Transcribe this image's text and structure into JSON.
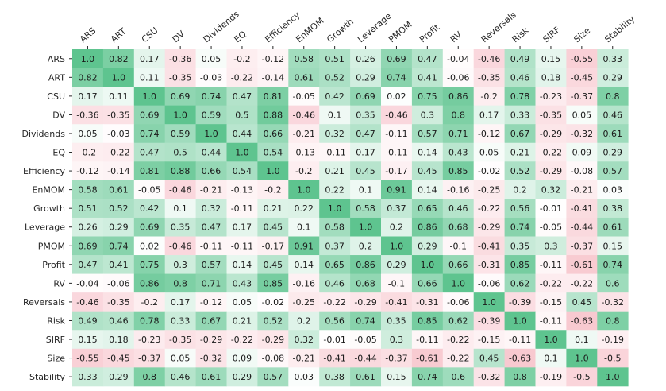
{
  "chart_data": {
    "type": "heatmap",
    "title": "",
    "xlabel": "",
    "ylabel": "",
    "categories": [
      "ARS",
      "ART",
      "CSU",
      "DV",
      "Dividends",
      "EQ",
      "Efficiency",
      "EnMOM",
      "Growth",
      "Leverage",
      "PMOM",
      "Profit",
      "RV",
      "Reversals",
      "Risk",
      "SIRF",
      "Size",
      "Stability"
    ],
    "value_range": [
      -1,
      1
    ],
    "colormap": {
      "negative": "#f4a9b4",
      "zero": "#ffffff",
      "positive": "#5ec48f"
    },
    "matrix": [
      [
        1.0,
        0.82,
        0.17,
        -0.36,
        0.05,
        -0.2,
        -0.12,
        0.58,
        0.51,
        0.26,
        0.69,
        0.47,
        -0.04,
        -0.46,
        0.49,
        0.15,
        -0.55,
        0.33
      ],
      [
        0.82,
        1.0,
        0.11,
        -0.35,
        -0.03,
        -0.22,
        -0.14,
        0.61,
        0.52,
        0.29,
        0.74,
        0.41,
        -0.06,
        -0.35,
        0.46,
        0.18,
        -0.45,
        0.29
      ],
      [
        0.17,
        0.11,
        1.0,
        0.69,
        0.74,
        0.47,
        0.81,
        -0.05,
        0.42,
        0.69,
        0.02,
        0.75,
        0.86,
        -0.2,
        0.78,
        -0.23,
        -0.37,
        0.8
      ],
      [
        -0.36,
        -0.35,
        0.69,
        1.0,
        0.59,
        0.5,
        0.88,
        -0.46,
        0.1,
        0.35,
        -0.46,
        0.3,
        0.8,
        0.17,
        0.33,
        -0.35,
        0.05,
        0.46
      ],
      [
        0.05,
        -0.03,
        0.74,
        0.59,
        1.0,
        0.44,
        0.66,
        -0.21,
        0.32,
        0.47,
        -0.11,
        0.57,
        0.71,
        -0.12,
        0.67,
        -0.29,
        -0.32,
        0.61
      ],
      [
        -0.2,
        -0.22,
        0.47,
        0.5,
        0.44,
        1.0,
        0.54,
        -0.13,
        -0.11,
        0.17,
        -0.11,
        0.14,
        0.43,
        0.05,
        0.21,
        -0.22,
        0.09,
        0.29
      ],
      [
        -0.12,
        -0.14,
        0.81,
        0.88,
        0.66,
        0.54,
        1.0,
        -0.2,
        0.21,
        0.45,
        -0.17,
        0.45,
        0.85,
        -0.02,
        0.52,
        -0.29,
        -0.08,
        0.57
      ],
      [
        0.58,
        0.61,
        -0.05,
        -0.46,
        -0.21,
        -0.13,
        -0.2,
        1.0,
        0.22,
        0.1,
        0.91,
        0.14,
        -0.16,
        -0.25,
        0.2,
        0.32,
        -0.21,
        0.03
      ],
      [
        0.51,
        0.52,
        0.42,
        0.1,
        0.32,
        -0.11,
        0.21,
        0.22,
        1.0,
        0.58,
        0.37,
        0.65,
        0.46,
        -0.22,
        0.56,
        -0.01,
        -0.41,
        0.38
      ],
      [
        0.26,
        0.29,
        0.69,
        0.35,
        0.47,
        0.17,
        0.45,
        0.1,
        0.58,
        1.0,
        0.2,
        0.86,
        0.68,
        -0.29,
        0.74,
        -0.05,
        -0.44,
        0.61
      ],
      [
        0.69,
        0.74,
        0.02,
        -0.46,
        -0.11,
        -0.11,
        -0.17,
        0.91,
        0.37,
        0.2,
        1.0,
        0.29,
        -0.1,
        -0.41,
        0.35,
        0.3,
        -0.37,
        0.15
      ],
      [
        0.47,
        0.41,
        0.75,
        0.3,
        0.57,
        0.14,
        0.45,
        0.14,
        0.65,
        0.86,
        0.29,
        1.0,
        0.66,
        -0.31,
        0.85,
        -0.11,
        -0.61,
        0.74
      ],
      [
        -0.04,
        -0.06,
        0.86,
        0.8,
        0.71,
        0.43,
        0.85,
        -0.16,
        0.46,
        0.68,
        -0.1,
        0.66,
        1.0,
        -0.06,
        0.62,
        -0.22,
        -0.22,
        0.6
      ],
      [
        -0.46,
        -0.35,
        -0.2,
        0.17,
        -0.12,
        0.05,
        -0.02,
        -0.25,
        -0.22,
        -0.29,
        -0.41,
        -0.31,
        -0.06,
        1.0,
        -0.39,
        -0.15,
        0.45,
        -0.32
      ],
      [
        0.49,
        0.46,
        0.78,
        0.33,
        0.67,
        0.21,
        0.52,
        0.2,
        0.56,
        0.74,
        0.35,
        0.85,
        0.62,
        -0.39,
        1.0,
        -0.11,
        -0.63,
        0.8
      ],
      [
        0.15,
        0.18,
        -0.23,
        -0.35,
        -0.29,
        -0.22,
        -0.29,
        0.32,
        -0.01,
        -0.05,
        0.3,
        -0.11,
        -0.22,
        -0.15,
        -0.11,
        1.0,
        0.1,
        -0.19
      ],
      [
        -0.55,
        -0.45,
        -0.37,
        0.05,
        -0.32,
        0.09,
        -0.08,
        -0.21,
        -0.41,
        -0.44,
        -0.37,
        -0.61,
        -0.22,
        0.45,
        -0.63,
        0.1,
        1.0,
        -0.5
      ],
      [
        0.33,
        0.29,
        0.8,
        0.46,
        0.61,
        0.29,
        0.57,
        0.03,
        0.38,
        0.61,
        0.15,
        0.74,
        0.6,
        -0.32,
        0.8,
        -0.19,
        -0.5,
        1.0
      ]
    ],
    "grid": false,
    "legend": "none"
  }
}
